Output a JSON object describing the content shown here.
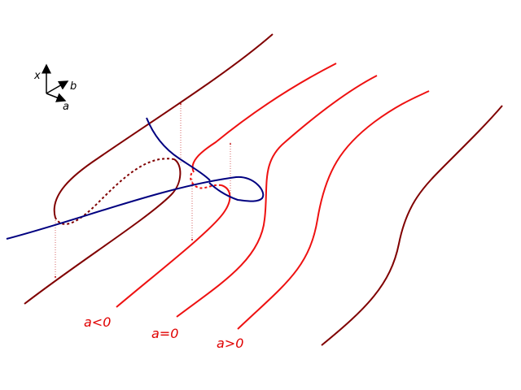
{
  "axes": {
    "x": "x",
    "b": "b",
    "a": "a"
  },
  "slice_labels": [
    "a<0",
    "a=0",
    "a>0"
  ]
}
